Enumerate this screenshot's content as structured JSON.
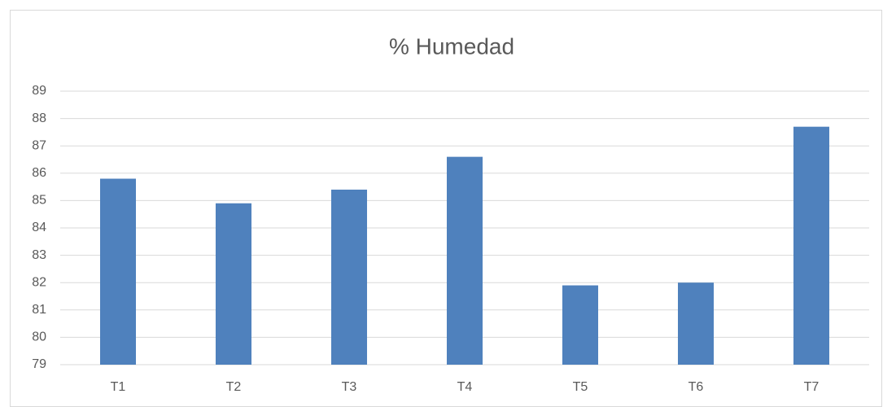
{
  "chart_data": {
    "type": "bar",
    "title": "% Humedad",
    "categories": [
      "T1",
      "T2",
      "T3",
      "T4",
      "T5",
      "T6",
      "T7"
    ],
    "values": [
      85.8,
      84.9,
      85.4,
      86.6,
      81.9,
      82.0,
      87.7
    ],
    "color": "#4f81bd",
    "ylim": [
      79,
      89
    ],
    "yticks": [
      79,
      80,
      81,
      82,
      83,
      84,
      85,
      86,
      87,
      88,
      89
    ],
    "grid": true
  }
}
